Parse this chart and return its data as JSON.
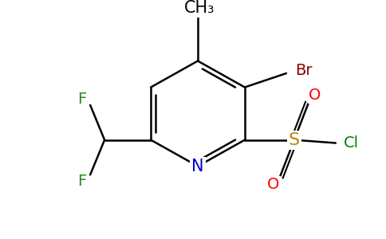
{
  "background_color": "#ffffff",
  "bond_color": "#000000",
  "bond_lw": 1.8,
  "figsize": [
    4.84,
    3.0
  ],
  "dpi": 100,
  "xlim": [
    0,
    484
  ],
  "ylim": [
    0,
    300
  ],
  "ch3_color": "#000000",
  "br_color": "#8B0000",
  "n_color": "#0000cc",
  "f_color": "#228B22",
  "s_color": "#b8860b",
  "o_color": "#ff0000",
  "cl_color": "#008000",
  "font_size": 14
}
